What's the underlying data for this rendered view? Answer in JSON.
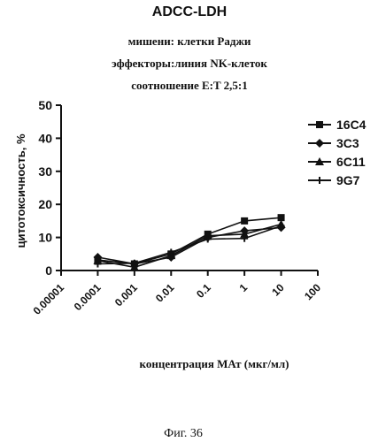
{
  "chart_data": {
    "type": "line",
    "title": "ADCC-LDH",
    "subtitle": [
      "мишени: клетки Раджи",
      "эффекторы:линия NK-клеток",
      "соотношение E:T 2,5:1"
    ],
    "xlabel": "концентрация МАт (мкг/мл)",
    "ylabel": "цитотоксичность, %",
    "x_scale": "log",
    "xlim": [
      1e-05,
      100
    ],
    "ylim": [
      0,
      50
    ],
    "x_ticks": [
      "0.00001",
      "0.0001",
      "0.001",
      "0.01",
      "0.1",
      "1",
      "10",
      "100"
    ],
    "y_ticks": [
      "0",
      "10",
      "20",
      "30",
      "40",
      "50"
    ],
    "x": [
      0.0001,
      0.001,
      0.01,
      0.1,
      1,
      10
    ],
    "series": [
      {
        "name": "16C4",
        "marker": "square",
        "values": [
          3.2,
          2.0,
          5.0,
          11.0,
          15.0,
          16.0
        ]
      },
      {
        "name": "3C3",
        "marker": "diamond",
        "values": [
          4.0,
          2.0,
          4.0,
          10.0,
          12.0,
          13.0
        ]
      },
      {
        "name": "6C11",
        "marker": "triangle",
        "values": [
          3.0,
          1.0,
          4.5,
          10.5,
          11.0,
          14.0
        ]
      },
      {
        "name": "9G7",
        "marker": "cross",
        "values": [
          2.0,
          2.2,
          5.5,
          9.5,
          9.7,
          13.5
        ]
      }
    ],
    "legend_position": "right",
    "grid": false
  },
  "figure_caption": "Фиг. 36"
}
